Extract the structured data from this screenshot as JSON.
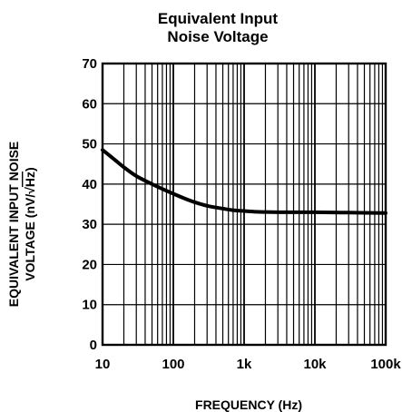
{
  "chart_data": {
    "type": "line",
    "title": "Equivalent Input",
    "subtitle": "Noise Voltage",
    "xlabel": "FREQUENCY (Hz)",
    "ylabel_line1": "EQUIVALENT INPUT NOISE",
    "ylabel_line2_prefix": "VOLTAGE (nV/",
    "ylabel_line2_radicand": "Hz",
    "ylabel_line2_suffix": ")",
    "x_scale": "log",
    "xlim": [
      10,
      100000
    ],
    "ylim": [
      0,
      70
    ],
    "grid": true,
    "x_ticks": [
      10,
      100,
      1000,
      10000,
      100000
    ],
    "x_tick_labels": [
      "10",
      "100",
      "1k",
      "10k",
      "100k"
    ],
    "y_ticks": [
      0,
      10,
      20,
      30,
      40,
      50,
      60,
      70
    ],
    "y_tick_labels": [
      "0",
      "10",
      "20",
      "30",
      "40",
      "50",
      "60",
      "70"
    ],
    "series": [
      {
        "x": [
          10,
          15,
          20,
          30,
          50,
          70,
          100,
          150,
          200,
          300,
          500,
          700,
          1000,
          1500,
          2000,
          3000,
          5000,
          10000,
          30000,
          100000
        ],
        "y": [
          48.5,
          46,
          44.2,
          42,
          40,
          38.8,
          37.6,
          36.3,
          35.5,
          34.6,
          33.9,
          33.5,
          33.3,
          33.1,
          33.05,
          33,
          33,
          33,
          32.9,
          32.8
        ]
      }
    ]
  }
}
